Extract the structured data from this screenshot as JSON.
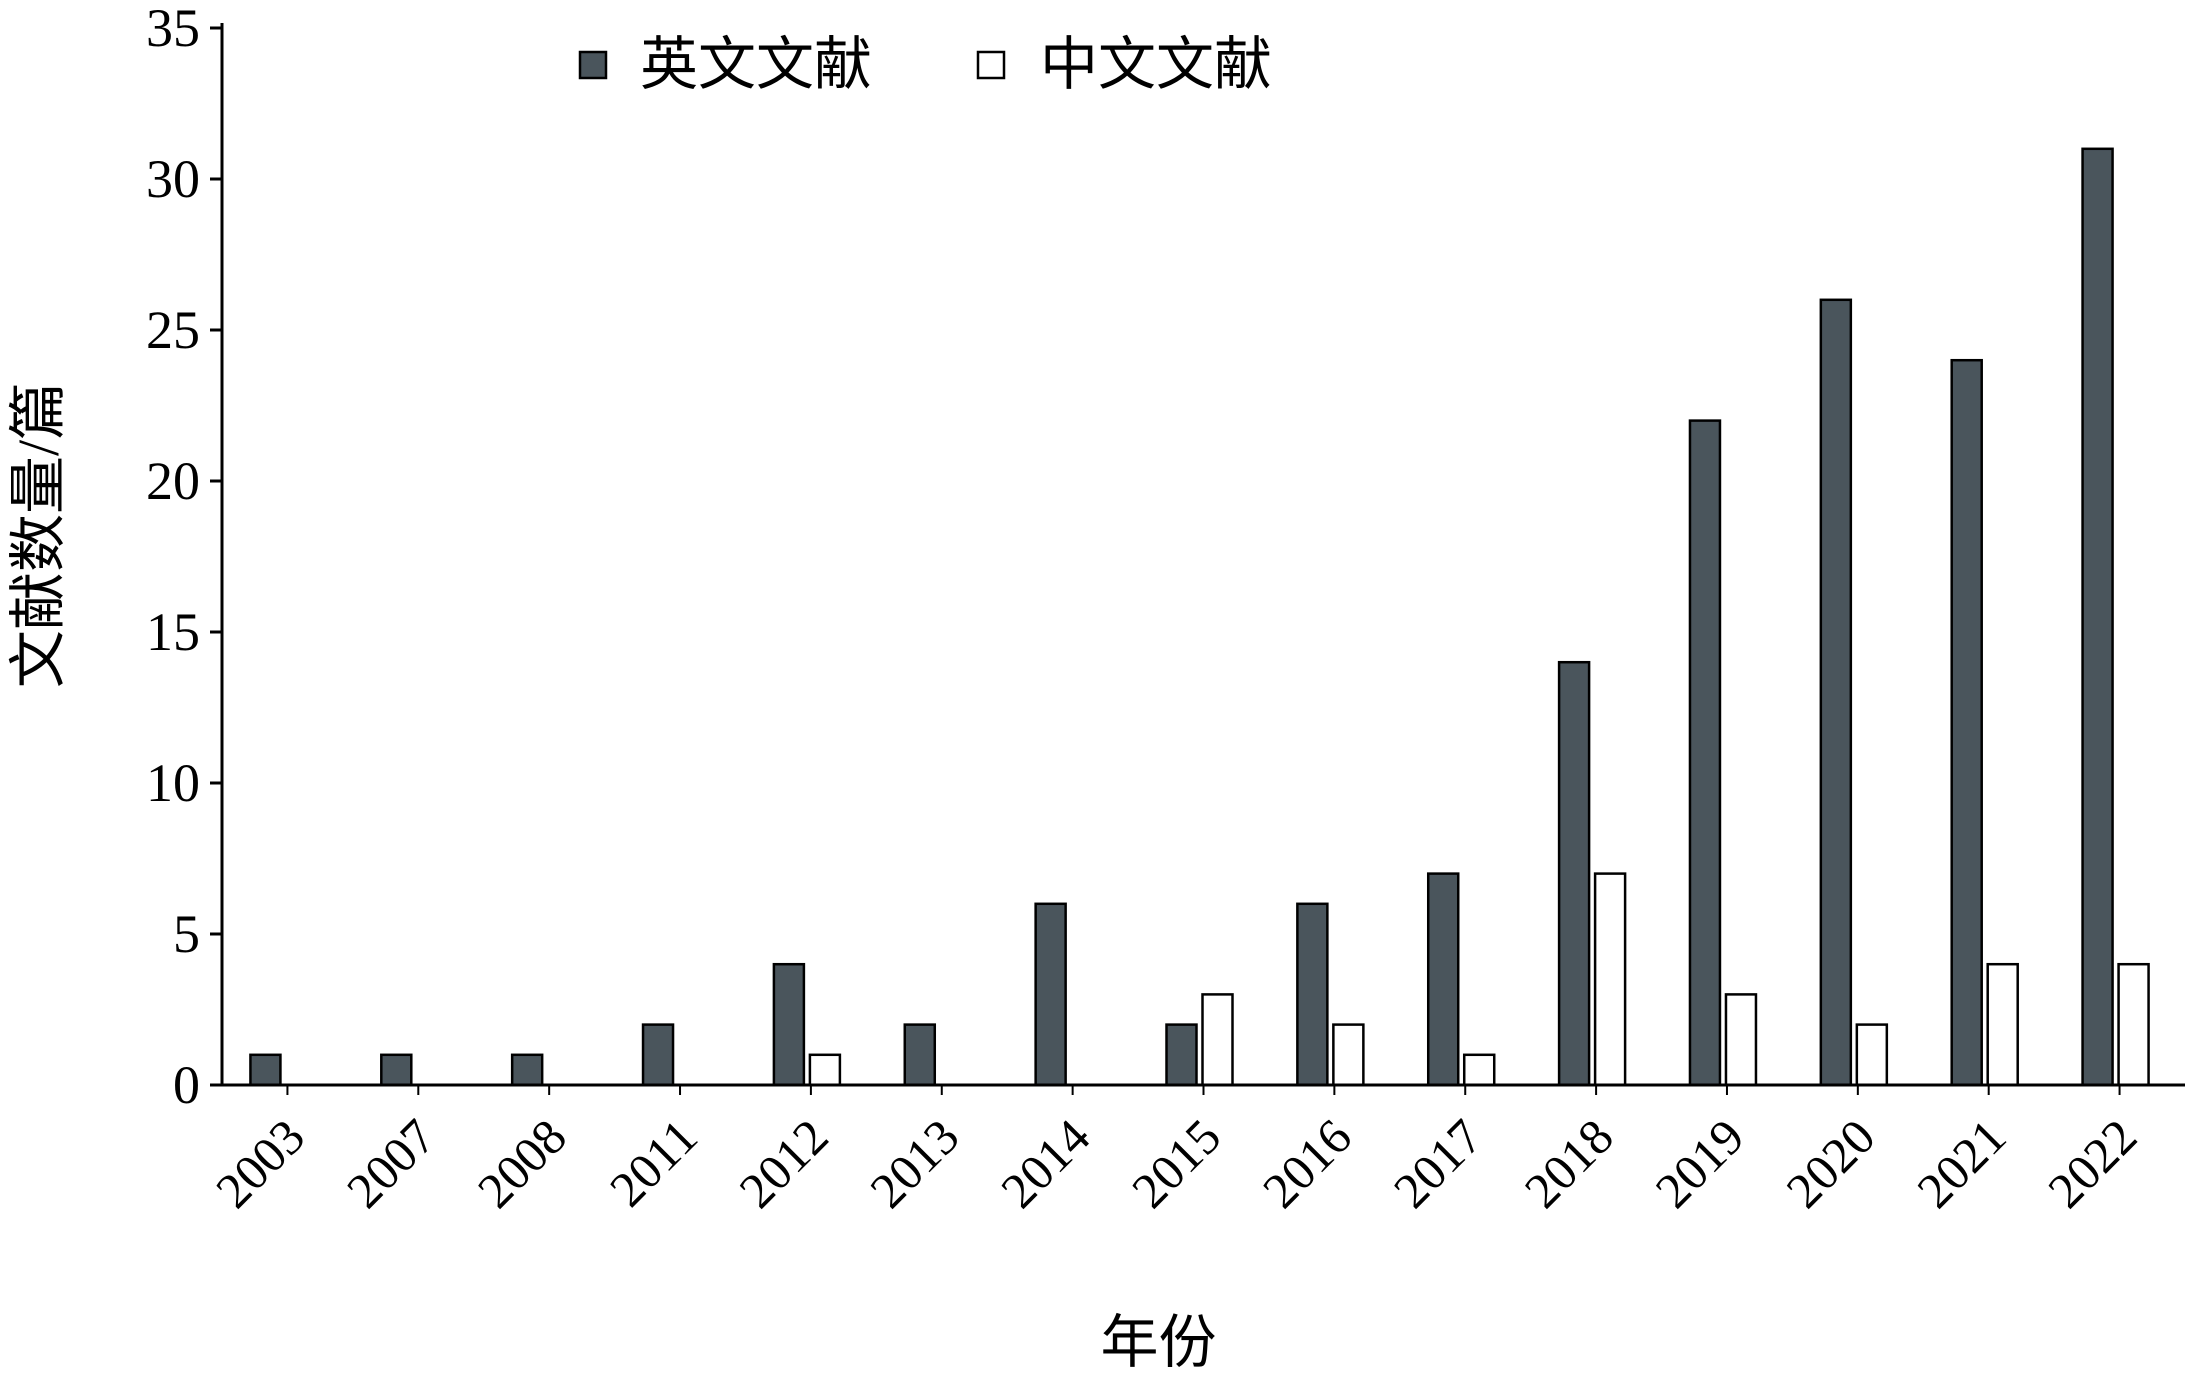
{
  "chart_data": {
    "type": "bar",
    "title": "",
    "xlabel": "年份",
    "ylabel": "文献数量/篇",
    "ylim": [
      0,
      35
    ],
    "yticks": [
      "0",
      "5",
      "10",
      "15",
      "20",
      "25",
      "30",
      "35"
    ],
    "grid": false,
    "legend_position": "top-left",
    "categories": [
      "2003",
      "2007",
      "2008",
      "2011",
      "2012",
      "2013",
      "2014",
      "2015",
      "2016",
      "2017",
      "2018",
      "2019",
      "2020",
      "2021",
      "2022"
    ],
    "series": [
      {
        "name": "英文文献",
        "color": "#4a555c",
        "values": [
          1,
          1,
          1,
          2,
          4,
          2,
          6,
          2,
          6,
          7,
          14,
          22,
          26,
          24,
          31
        ]
      },
      {
        "name": "中文文献",
        "color": "#ffffff",
        "values": [
          0,
          0,
          0,
          0,
          1,
          0,
          0,
          3,
          2,
          1,
          7,
          3,
          2,
          4,
          4
        ]
      }
    ]
  }
}
